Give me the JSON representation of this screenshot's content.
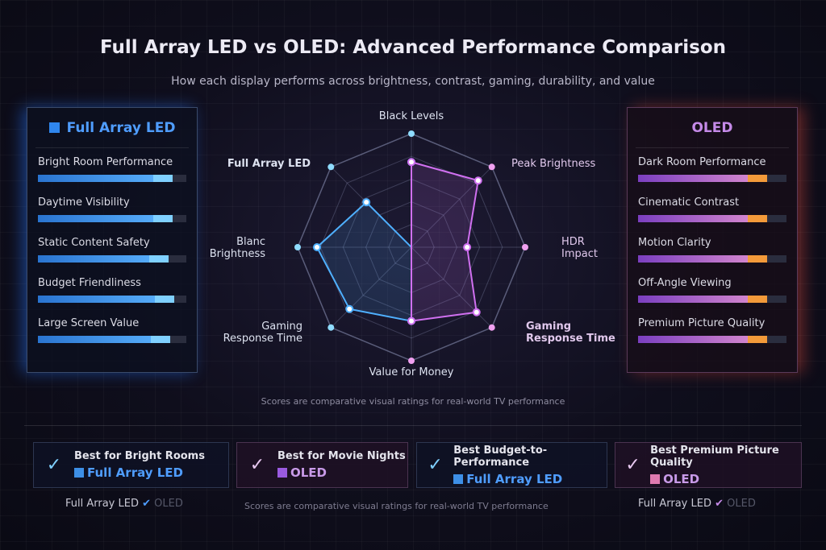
{
  "title": "Full Array LED vs OLED: Advanced Performance Comparison",
  "subtitle": "How each display performs across brightness, contrast, gaming, durability, and value",
  "left_panel": {
    "title": "Full Array LED",
    "color": "#2f86ee",
    "metrics": [
      {
        "label": "Bright Room Performance",
        "value": 0.91
      },
      {
        "label": "Daytime Visibility",
        "value": 0.91
      },
      {
        "label": "Static Content Safety",
        "value": 0.88
      },
      {
        "label": "Budget Friendliness",
        "value": 0.92
      },
      {
        "label": "Large Screen Value",
        "value": 0.89
      }
    ]
  },
  "right_panel": {
    "title": "OLED",
    "color": "#c58ae8",
    "metrics": [
      {
        "label": "Dark Room Performance",
        "value": 0.87
      },
      {
        "label": "Cinematic Contrast",
        "value": 0.87
      },
      {
        "label": "Motion Clarity",
        "value": 0.87
      },
      {
        "label": "Off-Angle Viewing",
        "value": 0.87
      },
      {
        "label": "Premium Picture Quality",
        "value": 0.87
      }
    ]
  },
  "chart_data": {
    "type": "radar",
    "axes": [
      "Black Levels",
      "Peak Brightness",
      "HDR Impact",
      "Gaming Response Time",
      "Value for Money",
      "Gaming Response Time",
      "Blanc Brightness",
      "Full Array LED"
    ],
    "range": [
      0,
      10
    ],
    "rings": 5,
    "series": [
      {
        "name": "Full Array LED",
        "color": "#4fb0ff",
        "axes_covered": [
          0,
          4,
          5,
          6,
          7
        ],
        "values": {
          "0": 7.5,
          "4": 6.5,
          "5": 7.7,
          "6": 8.3,
          "7": 5.6
        }
      },
      {
        "name": "OLED",
        "color": "#d070f0",
        "axes_covered": [
          0,
          1,
          2,
          3,
          4
        ],
        "values": {
          "0": 7.5,
          "1": 8.3,
          "2": 4.9,
          "3": 8.1,
          "4": 6.5
        }
      }
    ]
  },
  "note": "Scores are comparative visual ratings for real-world TV performance",
  "cards": [
    {
      "title": "Best for Bright Rooms",
      "winner": "Full Array LED",
      "color": "#3d8fe6"
    },
    {
      "title": "Best for Movie Nights",
      "winner": "OLED",
      "color": "#9a5ae0"
    },
    {
      "title": "Best Budget-to-Performance",
      "winner": "Full Array LED",
      "color": "#3d8fe6"
    },
    {
      "title": "Best Premium Picture  Quality",
      "winner": "OLED",
      "color": "#e07ab0"
    }
  ],
  "footer": {
    "a": "Full Array LED",
    "b": "OLED",
    "note": "Scores are comparative visual ratings for real-world TV performance"
  }
}
